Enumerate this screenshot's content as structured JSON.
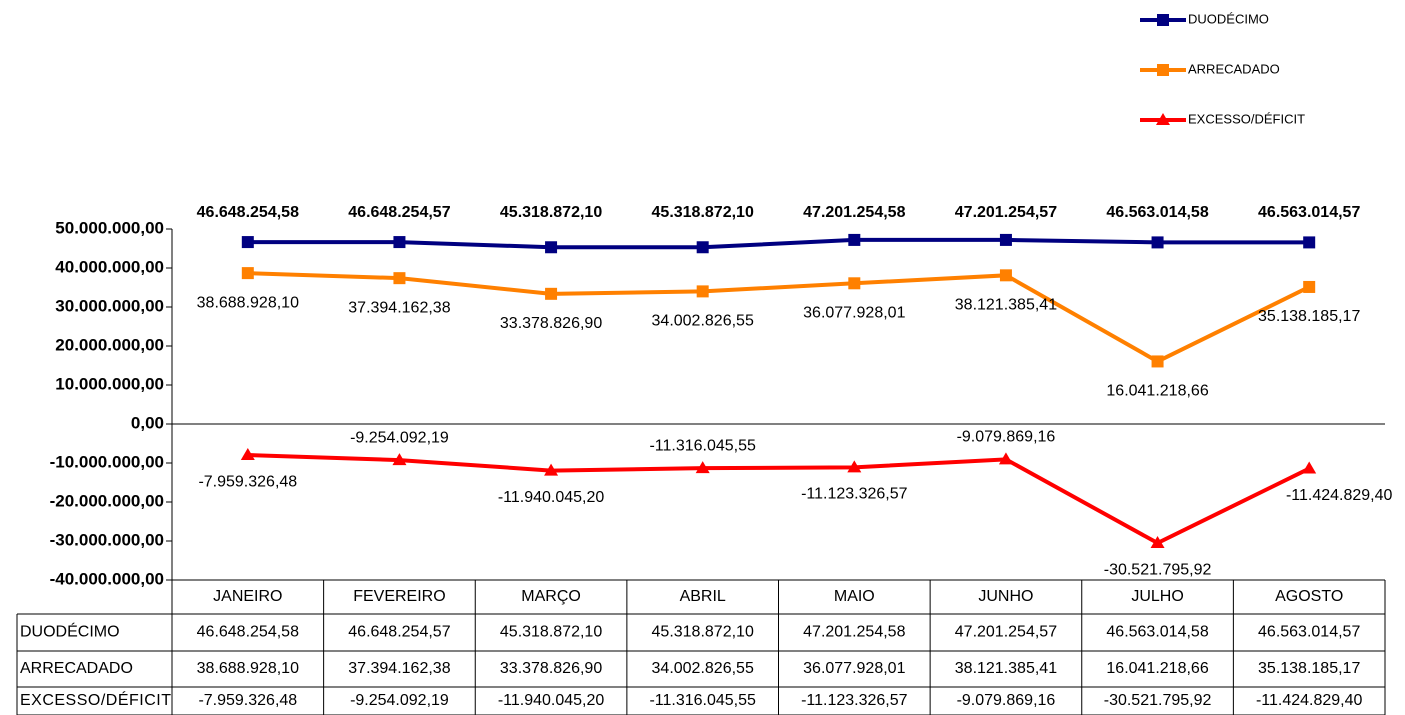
{
  "chart_data": {
    "type": "line",
    "categories": [
      "JANEIRO",
      "FEVEREIRO",
      "MARÇO",
      "ABRIL",
      "MAIO",
      "JUNHO",
      "JULHO",
      "AGOSTO"
    ],
    "series": [
      {
        "name": "DUODÉCIMO",
        "color": "#000080",
        "marker": "square",
        "values": [
          46648254.58,
          46648254.57,
          45318872.1,
          45318872.1,
          47201254.58,
          47201254.57,
          46563014.58,
          46563014.57
        ],
        "value_labels": [
          "46.648.254,58",
          "46.648.254,57",
          "45.318.872,10",
          "45.318.872,10",
          "47.201.254,58",
          "47.201.254,57",
          "46.563.014,58",
          "46.563.014,57"
        ]
      },
      {
        "name": "ARRECADADO",
        "color": "#FF8000",
        "marker": "square",
        "values": [
          38688928.1,
          37394162.38,
          33378826.9,
          34002826.55,
          36077928.01,
          38121385.41,
          16041218.66,
          35138185.17
        ],
        "value_labels": [
          "38.688.928,10",
          "37.394.162,38",
          "33.378.826,90",
          "34.002.826,55",
          "36.077.928,01",
          "38.121.385,41",
          "16.041.218,66",
          "35.138.185,17"
        ]
      },
      {
        "name": "EXCESSO/DÉFICIT",
        "color": "#FF0000",
        "marker": "triangle",
        "values": [
          -7959326.48,
          -9254092.19,
          -11940045.2,
          -11316045.55,
          -11123326.57,
          -9079869.16,
          -30521795.92,
          -11424829.4
        ],
        "value_labels": [
          "-7.959.326,48",
          "-9.254.092,19",
          "-11.940.045,20",
          "-11.316.045,55",
          "-11.123.326,57",
          "-9.079.869,16",
          "-30.521.795,92",
          "-11.424.829,40"
        ]
      }
    ],
    "ylim": [
      -40000000,
      50000000
    ],
    "yticks": [
      {
        "value": -40000000,
        "label": "-40.000.000,00"
      },
      {
        "value": -30000000,
        "label": "-30.000.000,00"
      },
      {
        "value": -20000000,
        "label": "-20.000.000,00"
      },
      {
        "value": -10000000,
        "label": "-10.000.000,00"
      },
      {
        "value": 0,
        "label": "0,00"
      },
      {
        "value": 10000000,
        "label": "10.000.000,00"
      },
      {
        "value": 20000000,
        "label": "20.000.000,00"
      },
      {
        "value": 30000000,
        "label": "30.000.000,00"
      },
      {
        "value": 40000000,
        "label": "40.000.000,00"
      },
      {
        "value": 50000000,
        "label": "50.000.000,00"
      }
    ],
    "legend": "top-right",
    "data_table": true
  }
}
